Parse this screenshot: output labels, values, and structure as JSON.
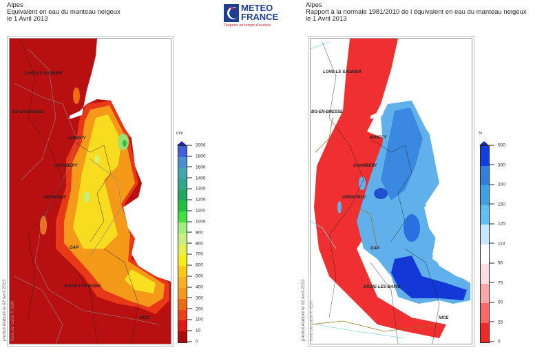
{
  "left": {
    "title": [
      "Alpes",
      "Equivalent en eau du manteau neigeux",
      "le 1 Avril 2013"
    ],
    "unit": "mm",
    "legend": [
      "0",
      "10",
      "100",
      "200",
      "300",
      "400",
      "500",
      "600",
      "700",
      "800",
      "900",
      "1000",
      "1100",
      "1200",
      "1300",
      "1400",
      "1600",
      "1800",
      "2000"
    ],
    "colors": [
      "#b00a0a",
      "#e01818",
      "#f04018",
      "#f06a10",
      "#f49a18",
      "#f8b020",
      "#f8cc10",
      "#f8ee10",
      "#e8f050",
      "#c8f080",
      "#a0f080",
      "#40e040",
      "#20c040",
      "#20a860",
      "#30a890",
      "#40a8b0",
      "#4890d0",
      "#4060e0"
    ],
    "credit": "produit élaboré le 02 Avril 2013",
    "credit2": "fond de carte © IGN"
  },
  "right": {
    "title": [
      "Alpes",
      "Rapport à la normale 1981/2010 de l équivalent en eau du manteau neigeux",
      "le 1 Avril 2013"
    ],
    "unit": "%",
    "legend": [
      "0",
      "25",
      "50",
      "75",
      "90",
      "110",
      "125",
      "150",
      "200",
      "300",
      "500"
    ],
    "colors": [
      "#f02828",
      "#f86868",
      "#f8a8a8",
      "#fce0e0",
      "#ffffff",
      "#c8e8fa",
      "#60c0f0",
      "#40a0e8",
      "#3080e0",
      "#1040e0"
    ],
    "credit": "produit élaboré le 02 Avril 2013",
    "credit2": "fond de carte © IGN"
  },
  "cities": [
    "LONS-LE-SAUNIER",
    "BG-EN-BRESSE",
    "ANNECY",
    "CHAMBERY",
    "GRENOBLE",
    "GAP",
    "DIGNE-LES-BAINS",
    "NICE"
  ],
  "logo": {
    "line1": "METEO",
    "line2": "FRANCE",
    "tagline": "Toujours un temps d'avance"
  }
}
